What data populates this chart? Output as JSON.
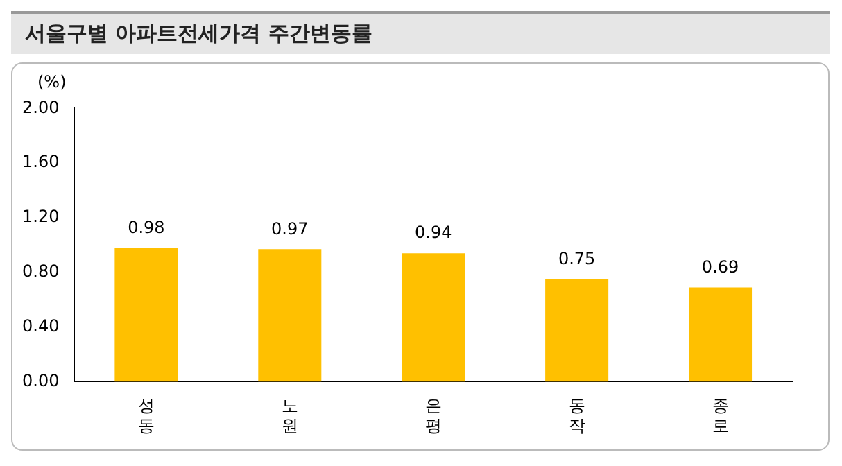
{
  "chart_data": {
    "type": "bar",
    "title": "서울구별 아파트전세가격 주간변동률",
    "ylabel": "(%)",
    "categories": [
      "성동",
      "노원",
      "은평",
      "동작",
      "종로"
    ],
    "values": [
      0.98,
      0.97,
      0.94,
      0.75,
      0.69
    ],
    "color": "#ffc000",
    "ylim": [
      0,
      2
    ],
    "yticks": [
      {
        "value": 0,
        "label": "0.00"
      },
      {
        "value": 0.4,
        "label": "0.40"
      },
      {
        "value": 0.8,
        "label": "0.80"
      },
      {
        "value": 1.2,
        "label": "1.20"
      },
      {
        "value": 1.6,
        "label": "1.60"
      },
      {
        "value": 2,
        "label": "2.00"
      }
    ],
    "grid": false,
    "legend": false,
    "data_labels": true
  }
}
